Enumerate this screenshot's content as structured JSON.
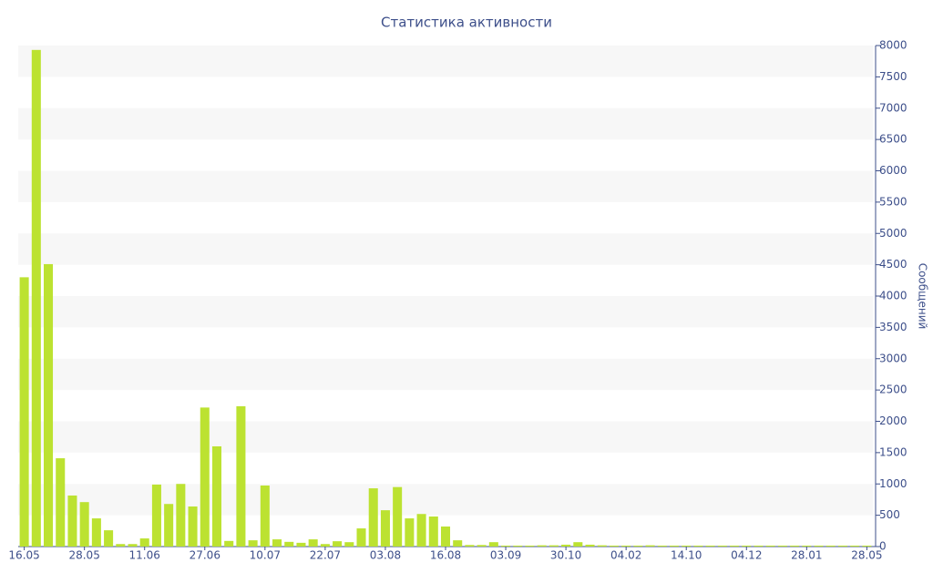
{
  "chart_data": {
    "type": "bar",
    "title": "Статистика активности",
    "y_axis_label": "Сообщений",
    "y_axis_side": "right",
    "categories": [
      "16.05",
      null,
      null,
      null,
      null,
      "28.05",
      null,
      null,
      null,
      null,
      "11.06",
      null,
      null,
      null,
      null,
      "27.06",
      null,
      null,
      null,
      null,
      "10.07",
      null,
      null,
      null,
      null,
      "22.07",
      null,
      null,
      null,
      null,
      "03.08",
      null,
      null,
      null,
      null,
      "16.08",
      null,
      null,
      null,
      null,
      "03.09",
      null,
      null,
      null,
      null,
      "30.10",
      null,
      null,
      null,
      null,
      "04.02",
      null,
      null,
      null,
      null,
      "14.10",
      null,
      null,
      null,
      null,
      "04.12",
      null,
      null,
      null,
      null,
      "28.01",
      null,
      null,
      null,
      null,
      "28.05"
    ],
    "values": [
      4300,
      7930,
      4510,
      1410,
      815,
      710,
      450,
      260,
      40,
      40,
      130,
      990,
      680,
      1000,
      640,
      2220,
      1600,
      90,
      2240,
      100,
      975,
      115,
      75,
      60,
      115,
      40,
      85,
      70,
      290,
      930,
      580,
      950,
      450,
      520,
      480,
      320,
      100,
      25,
      25,
      70,
      15,
      15,
      15,
      20,
      20,
      30,
      70,
      30,
      20,
      15,
      15,
      15,
      20,
      15,
      15,
      15,
      15,
      15,
      15,
      15,
      15,
      15,
      15,
      15,
      15,
      15,
      15,
      15,
      15,
      15,
      15
    ],
    "color": "#bce231",
    "ylim": [
      0,
      8000
    ],
    "yticks": [
      0,
      500,
      1000,
      1500,
      2000,
      2500,
      3000,
      3500,
      4000,
      4500,
      5000,
      5500,
      6000,
      6500,
      7000,
      7500,
      8000
    ],
    "grid": true
  }
}
